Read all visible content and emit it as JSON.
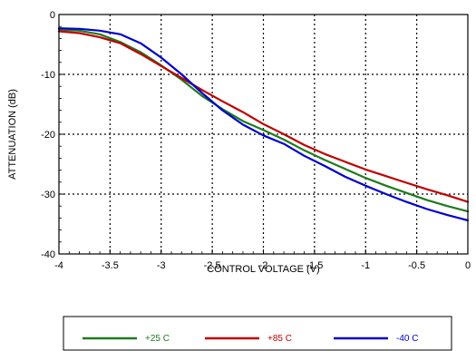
{
  "chart_data": {
    "type": "line",
    "xlabel": "CONTROL VOLTAGE (V)",
    "ylabel": "ATTENUATION (dB)",
    "xlim": [
      -4,
      0
    ],
    "ylim": [
      -40,
      0
    ],
    "x_ticks": [
      "-4",
      "-3.5",
      "-3",
      "-2.5",
      "-2",
      "-1.5",
      "-1",
      "-0.5",
      "0"
    ],
    "y_ticks": [
      "0",
      "-10",
      "-20",
      "-30",
      "-40"
    ],
    "grid": true,
    "legend_position": "bottom",
    "series": [
      {
        "name": "+25 C",
        "color": "#1f7a1f",
        "x": [
          -4.0,
          -3.8,
          -3.6,
          -3.4,
          -3.2,
          -3.0,
          -2.8,
          -2.6,
          -2.4,
          -2.2,
          -2.0,
          -1.8,
          -1.6,
          -1.4,
          -1.2,
          -1.0,
          -0.8,
          -0.6,
          -0.4,
          -0.2,
          0.0
        ],
        "y": [
          -2.5,
          -2.7,
          -3.3,
          -4.6,
          -6.3,
          -8.5,
          -10.9,
          -13.6,
          -15.8,
          -17.8,
          -19.3,
          -20.9,
          -22.7,
          -24.3,
          -25.8,
          -27.3,
          -28.6,
          -29.8,
          -31.0,
          -32.0,
          -32.9
        ]
      },
      {
        "name": "+85 C",
        "color": "#c00000",
        "x": [
          -4.0,
          -3.8,
          -3.6,
          -3.4,
          -3.2,
          -3.0,
          -2.8,
          -2.6,
          -2.4,
          -2.2,
          -2.0,
          -1.8,
          -1.6,
          -1.4,
          -1.2,
          -1.0,
          -0.8,
          -0.6,
          -0.4,
          -0.2,
          0.0
        ],
        "y": [
          -2.8,
          -3.1,
          -3.8,
          -4.8,
          -6.6,
          -8.6,
          -10.6,
          -12.6,
          -14.5,
          -16.3,
          -18.3,
          -20.0,
          -21.8,
          -23.3,
          -24.6,
          -25.9,
          -27.0,
          -28.1,
          -29.2,
          -30.2,
          -31.3
        ]
      },
      {
        "name": "-40 C",
        "color": "#0000cc",
        "x": [
          -4.0,
          -3.8,
          -3.6,
          -3.4,
          -3.2,
          -3.0,
          -2.8,
          -2.6,
          -2.4,
          -2.2,
          -2.0,
          -1.8,
          -1.6,
          -1.4,
          -1.2,
          -1.0,
          -0.8,
          -0.6,
          -0.4,
          -0.2,
          0.0
        ],
        "y": [
          -2.3,
          -2.4,
          -2.7,
          -3.3,
          -4.8,
          -7.2,
          -10.0,
          -13.1,
          -16.0,
          -18.4,
          -20.2,
          -21.6,
          -23.6,
          -25.3,
          -27.1,
          -28.6,
          -30.0,
          -31.3,
          -32.5,
          -33.5,
          -34.4
        ]
      }
    ]
  }
}
